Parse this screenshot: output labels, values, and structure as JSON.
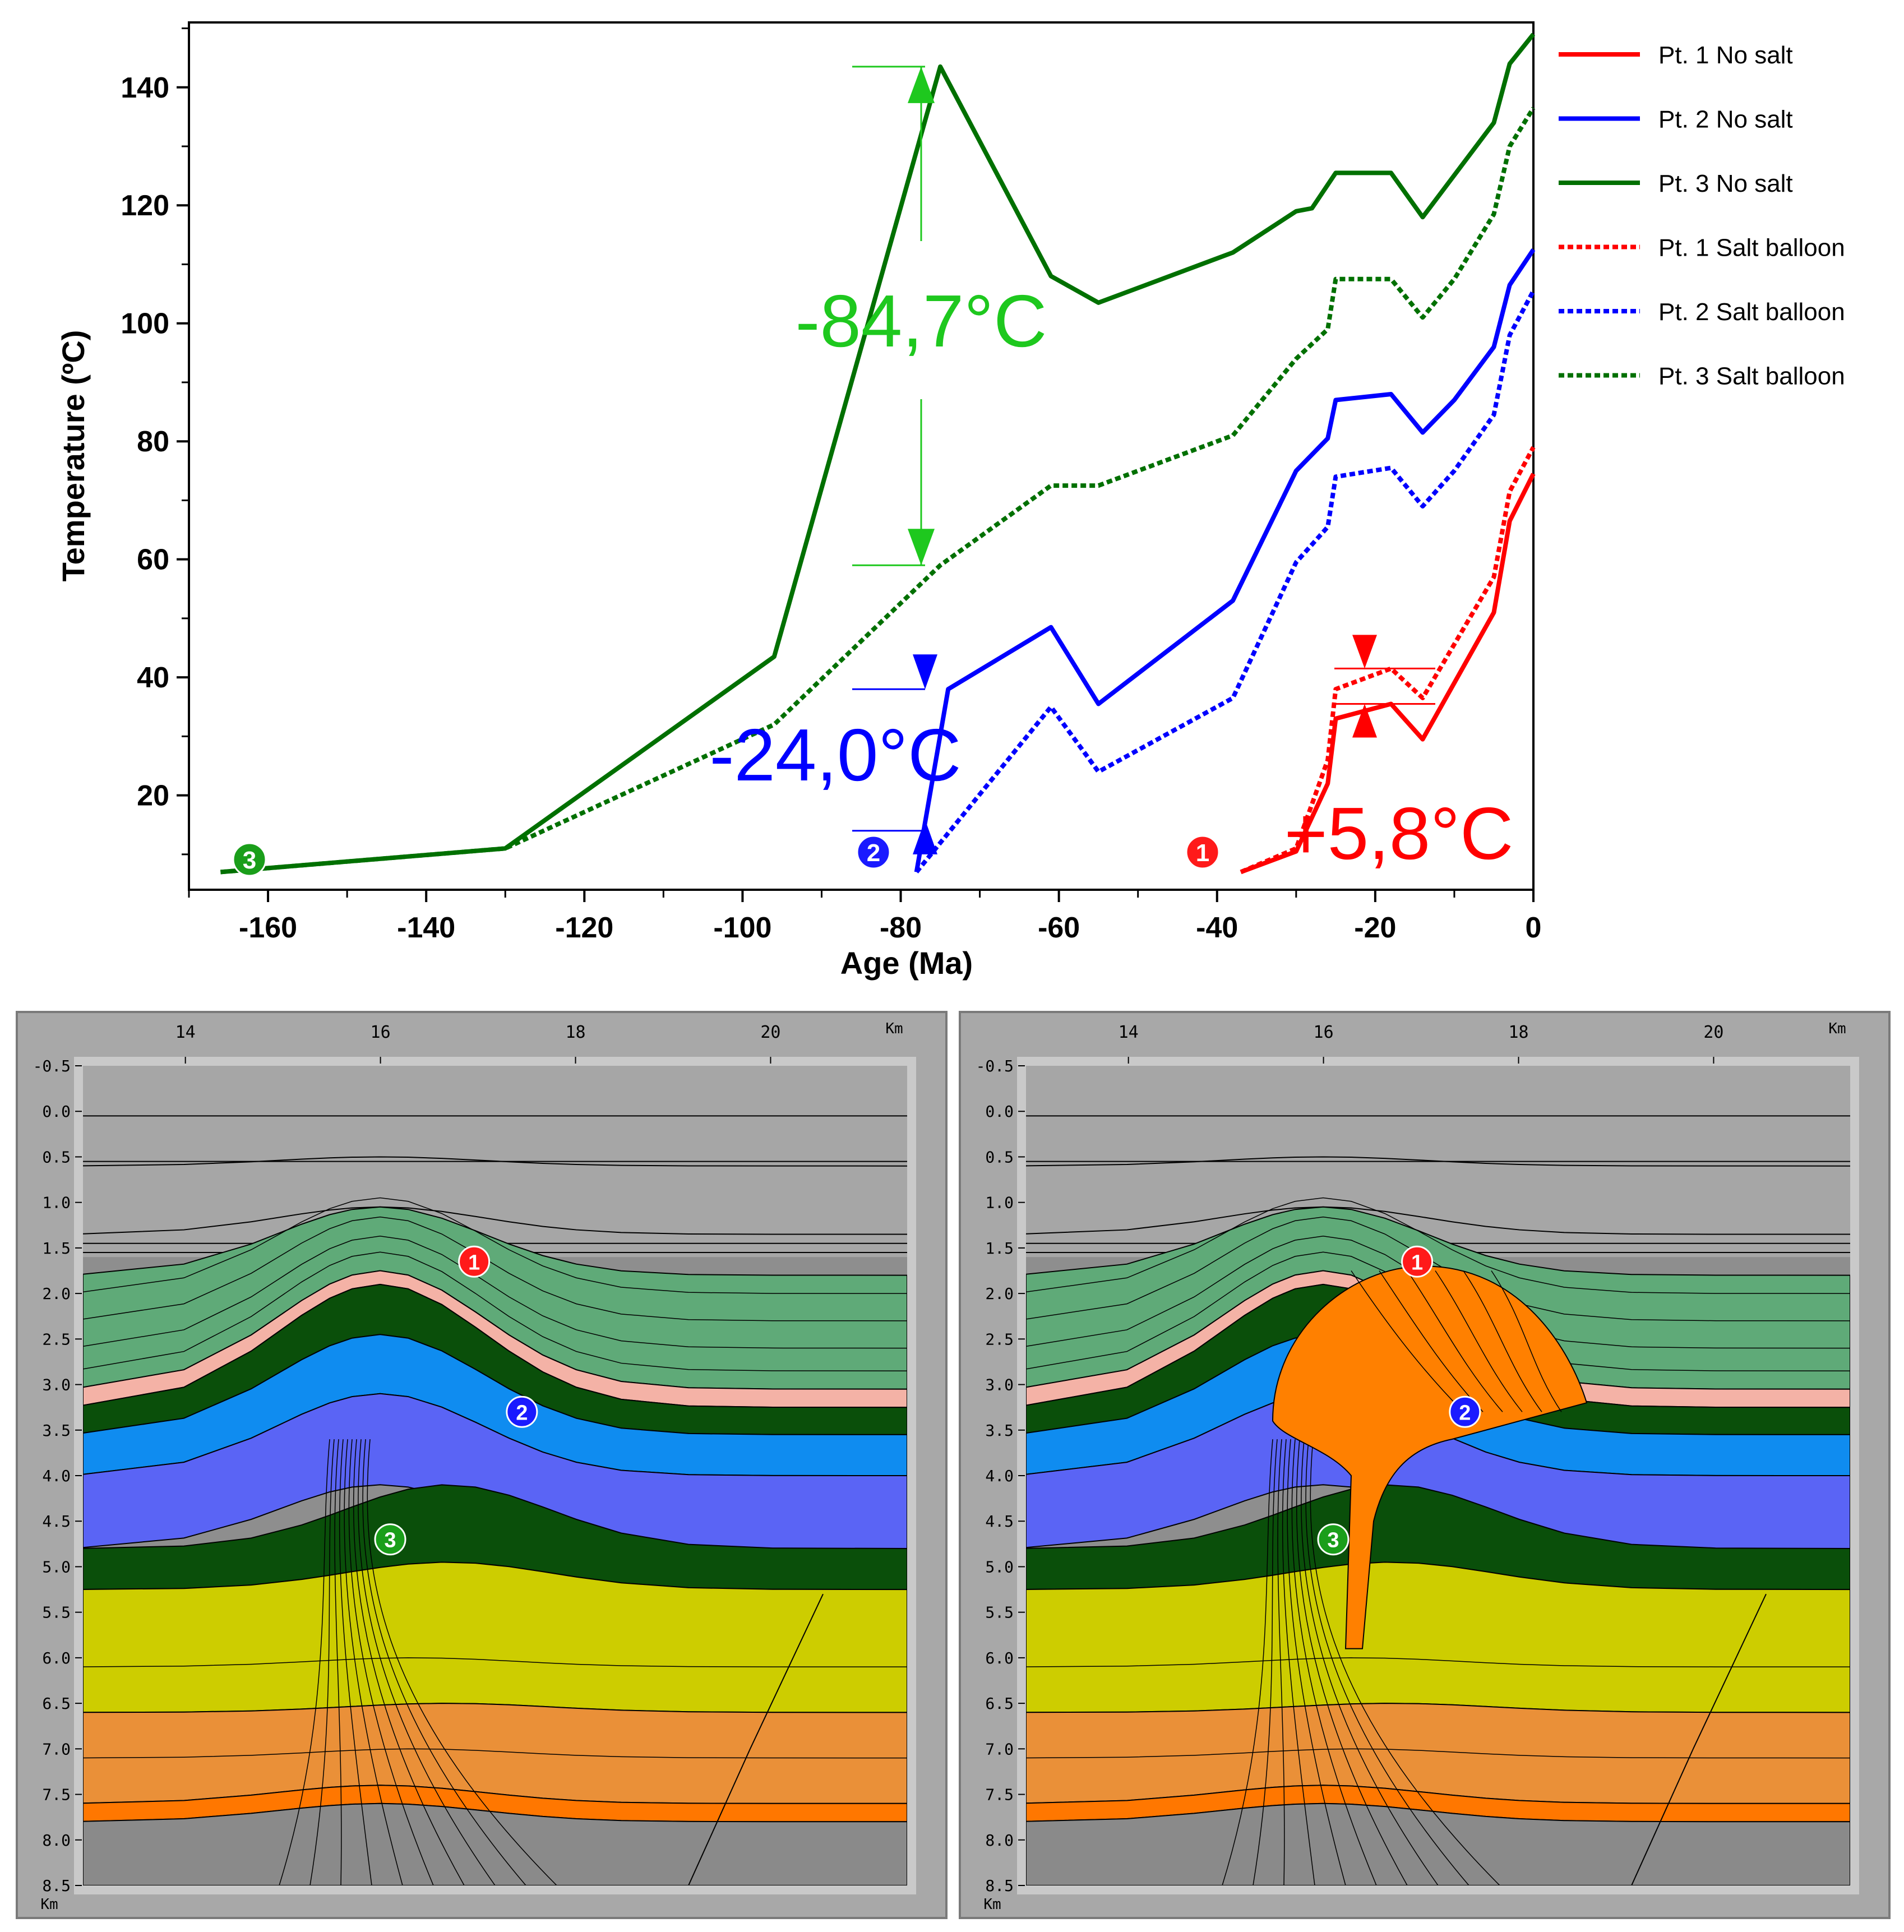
{
  "chart_data": [
    {
      "type": "line",
      "xlabel": "Age (Ma)",
      "ylabel": "Temperature (ºC)",
      "xlim": [
        -170,
        0
      ],
      "ylim": [
        4,
        151
      ],
      "xticks": [
        -160,
        -140,
        -120,
        -100,
        -80,
        -60,
        -40,
        -20,
        0
      ],
      "yticks": [
        20,
        40,
        60,
        80,
        100,
        120,
        140
      ],
      "grid": false,
      "legend_position": "right",
      "series": [
        {
          "name": "Pt. 1 No salt",
          "color": "#ff0000",
          "style": "solid",
          "points": [
            [
              -37,
              7
            ],
            [
              -30,
              10.5
            ],
            [
              -26,
              22
            ],
            [
              -25,
              33
            ],
            [
              -18,
              35.5
            ],
            [
              -14,
              29.5
            ],
            [
              -5,
              51
            ],
            [
              -3,
              66.5
            ],
            [
              0,
              74.5
            ]
          ]
        },
        {
          "name": "Pt. 2 No salt",
          "color": "#0000ff",
          "style": "solid",
          "points": [
            [
              -78,
              7
            ],
            [
              -74,
              38
            ],
            [
              -61,
              48.5
            ],
            [
              -55,
              35.5
            ],
            [
              -38,
              53
            ],
            [
              -30,
              75
            ],
            [
              -26,
              80.5
            ],
            [
              -25,
              87
            ],
            [
              -18,
              88
            ],
            [
              -14,
              81.5
            ],
            [
              -10,
              87
            ],
            [
              -5,
              96
            ],
            [
              -3,
              106.5
            ],
            [
              0,
              112.5
            ]
          ]
        },
        {
          "name": "Pt. 3 No salt",
          "color": "#007000",
          "style": "solid",
          "points": [
            [
              -166,
              7
            ],
            [
              -130,
              11
            ],
            [
              -96,
              43.5
            ],
            [
              -75,
              143.5
            ],
            [
              -61,
              108
            ],
            [
              -55,
              103.5
            ],
            [
              -38,
              112
            ],
            [
              -30,
              119
            ],
            [
              -28,
              119.5
            ],
            [
              -25,
              125.5
            ],
            [
              -18,
              125.5
            ],
            [
              -14,
              118
            ],
            [
              -5,
              134
            ],
            [
              -3,
              144
            ],
            [
              0,
              149
            ]
          ]
        },
        {
          "name": "Pt. 1 Salt balloon",
          "color": "#ff0000",
          "style": "dashed",
          "points": [
            [
              -37,
              7
            ],
            [
              -30,
              11
            ],
            [
              -26,
              26
            ],
            [
              -25,
              38
            ],
            [
              -18,
              41.5
            ],
            [
              -14,
              36.5
            ],
            [
              -5,
              57
            ],
            [
              -3,
              71.5
            ],
            [
              0,
              79
            ]
          ]
        },
        {
          "name": "Pt. 2 Salt balloon",
          "color": "#0000ff",
          "style": "dashed",
          "points": [
            [
              -78,
              7
            ],
            [
              -61,
              35
            ],
            [
              -55,
              24
            ],
            [
              -38,
              36.5
            ],
            [
              -30,
              59.5
            ],
            [
              -26,
              65.5
            ],
            [
              -25,
              74
            ],
            [
              -18,
              75.5
            ],
            [
              -14,
              69
            ],
            [
              -10,
              75
            ],
            [
              -5,
              84.5
            ],
            [
              -3,
              98
            ],
            [
              0,
              105.5
            ]
          ]
        },
        {
          "name": "Pt. 3 Salt balloon",
          "color": "#007000",
          "style": "dashed",
          "points": [
            [
              -166,
              7
            ],
            [
              -130,
              11
            ],
            [
              -96,
              32
            ],
            [
              -75,
              59
            ],
            [
              -61,
              72.5
            ],
            [
              -55,
              72.5
            ],
            [
              -38,
              81
            ],
            [
              -30,
              94
            ],
            [
              -26,
              99
            ],
            [
              -25,
              107.5
            ],
            [
              -18,
              107.5
            ],
            [
              -14,
              101
            ],
            [
              -10,
              107.5
            ],
            [
              -5,
              118.5
            ],
            [
              -3,
              130
            ],
            [
              0,
              136.5
            ]
          ]
        }
      ],
      "annotations": [
        {
          "text": "-84,7°C",
          "color": "#1ec81e"
        },
        {
          "text": "-24,0°C",
          "color": "#0000ff"
        },
        {
          "text": "+5,8°C",
          "color": "#ff0000"
        }
      ],
      "point_markers": [
        {
          "label": "3",
          "color": "#1a9e1a"
        },
        {
          "label": "2",
          "color": "#1a1aff"
        },
        {
          "label": "1",
          "color": "#ff1a1a"
        }
      ]
    },
    {
      "type": "cross-section",
      "scenario": "No salt",
      "x_unit": "Km",
      "y_unit": "Km",
      "xticks": [
        "14",
        "16",
        "18",
        "20"
      ],
      "yticks": [
        "-0.5",
        "0.0",
        "0.5",
        "1.0",
        "1.5",
        "2.0",
        "2.5",
        "3.0",
        "3.5",
        "4.0",
        "4.5",
        "5.0",
        "5.5",
        "6.0",
        "6.5",
        "7.0",
        "7.5",
        "8.0",
        "8.5"
      ],
      "point_markers": [
        {
          "label": "1",
          "color": "#ff1a1a"
        },
        {
          "label": "2",
          "color": "#1a1aff"
        },
        {
          "label": "3",
          "color": "#1a9e1a"
        }
      ]
    },
    {
      "type": "cross-section",
      "scenario": "Salt balloon",
      "x_unit": "Km",
      "y_unit": "Km",
      "xticks": [
        "14",
        "16",
        "18",
        "20"
      ],
      "yticks": [
        "-0.5",
        "0.0",
        "0.5",
        "1.0",
        "1.5",
        "2.0",
        "2.5",
        "3.0",
        "3.5",
        "4.0",
        "4.5",
        "5.0",
        "5.5",
        "6.0",
        "6.5",
        "7.0",
        "7.5",
        "8.0",
        "8.5"
      ],
      "point_markers": [
        {
          "label": "1",
          "color": "#ff1a1a"
        },
        {
          "label": "2",
          "color": "#1a1aff"
        },
        {
          "label": "3",
          "color": "#1a9e1a"
        }
      ]
    }
  ],
  "colors": {
    "sea_water": "#a6a6a6",
    "green_light": "#5faa78",
    "pink": "#f4b2a6",
    "green_dark": "#0a4f0a",
    "blue_light": "#0f8cf0",
    "blue_mid": "#5a64f5",
    "yellow": "#cdcd00",
    "orange_light": "#ea9038",
    "orange_dark": "#ff7700",
    "basement": "#8a8a8a",
    "salt": "#ff8000"
  }
}
